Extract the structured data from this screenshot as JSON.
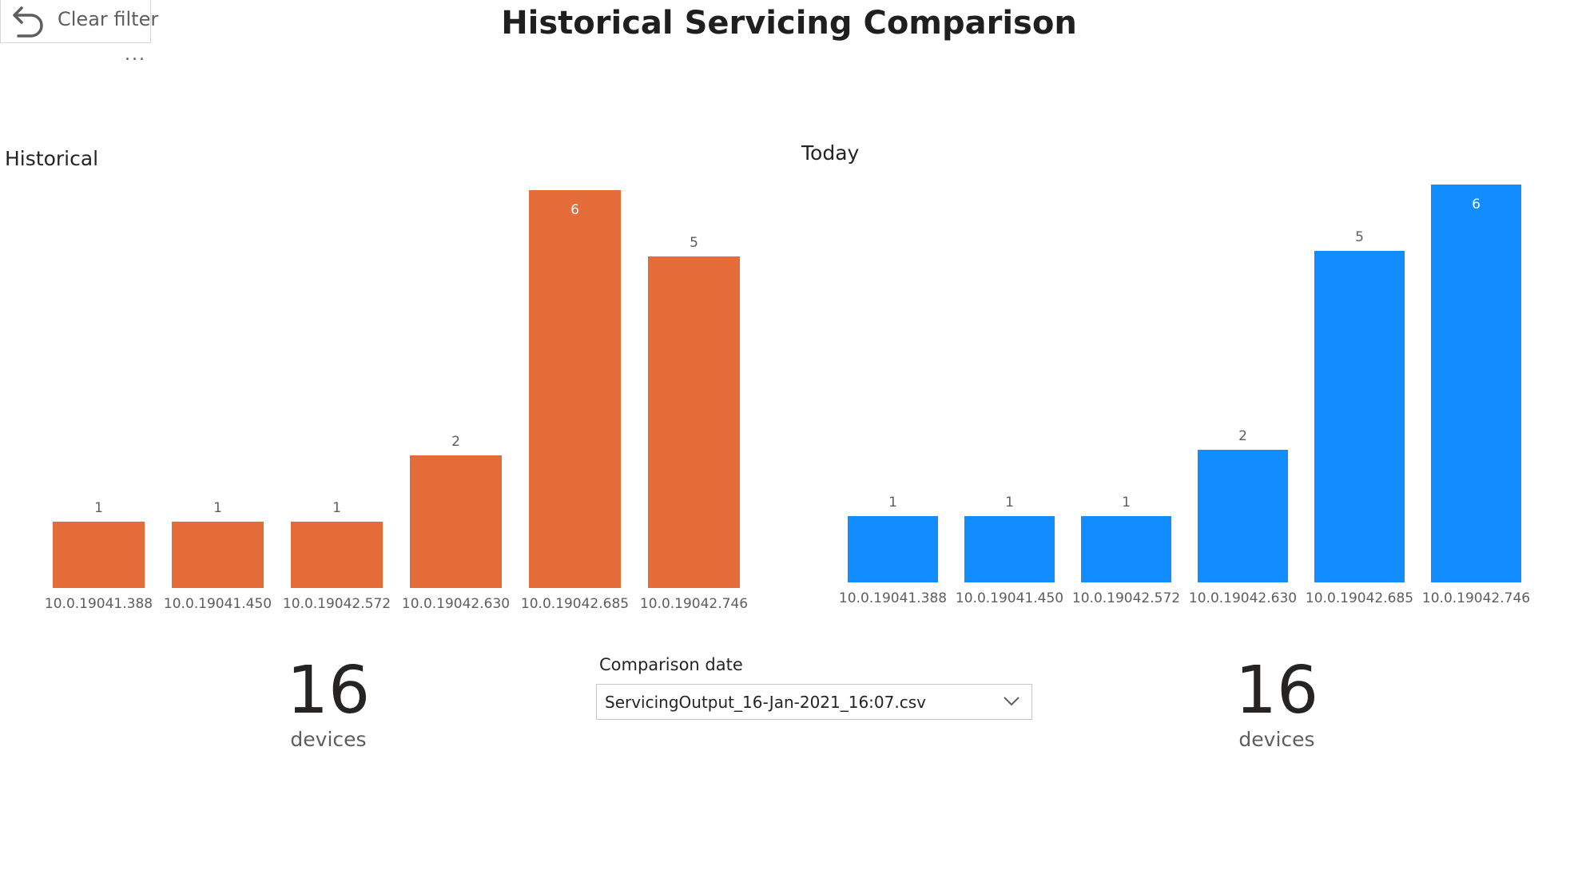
{
  "header": {
    "clear_filter_label": "Clear filter",
    "more_options": "...",
    "page_title": "Historical Servicing Comparison"
  },
  "icons": {
    "clear_filter": "undo-arrow-icon",
    "dropdown": "chevron-down-icon"
  },
  "colors": {
    "historical": "#e46c39",
    "today": "#118dff"
  },
  "visuals": {
    "historical_title": "Historical",
    "today_title": "Today"
  },
  "chart_data": [
    {
      "type": "bar",
      "title": "Historical",
      "categories": [
        "10.0.19041.388",
        "10.0.19041.450",
        "10.0.19042.572",
        "10.0.19042.630",
        "10.0.19042.685",
        "10.0.19042.746"
      ],
      "values": [
        1,
        1,
        1,
        2,
        6,
        5
      ],
      "color": "#e46c39",
      "data_labels": true,
      "grid": false,
      "ylim": [
        0,
        6
      ]
    },
    {
      "type": "bar",
      "title": "Today",
      "categories": [
        "10.0.19041.388",
        "10.0.19041.450",
        "10.0.19042.572",
        "10.0.19042.630",
        "10.0.19042.685",
        "10.0.19042.746"
      ],
      "values": [
        1,
        1,
        1,
        2,
        5,
        6
      ],
      "color": "#118dff",
      "data_labels": true,
      "grid": false,
      "ylim": [
        0,
        6
      ]
    }
  ],
  "cards": {
    "historical": {
      "value": "16",
      "unit": "devices"
    },
    "today": {
      "value": "16",
      "unit": "devices"
    }
  },
  "slicer": {
    "title": "Comparison date",
    "selected": "ServicingOutput_16-Jan-2021_16:07.csv"
  }
}
